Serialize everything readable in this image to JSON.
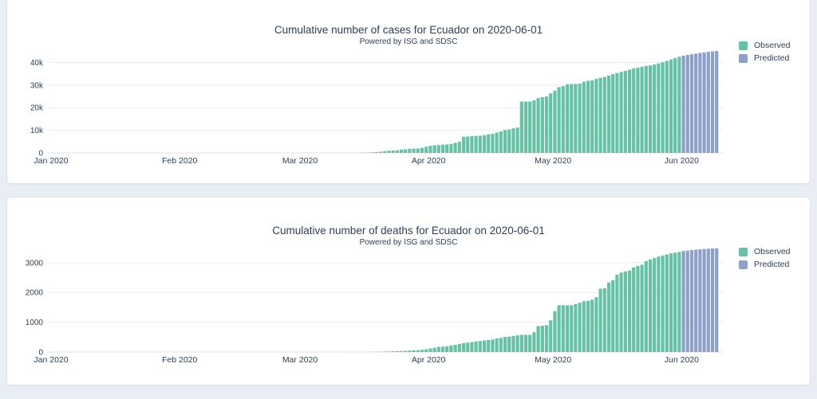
{
  "page": {
    "background_color": "#e9edf4",
    "card_background": "#ffffff",
    "text_color": "#2a3f5f",
    "observed_color": "#66c2a5",
    "predicted_color": "#8da0cb"
  },
  "chart_data": [
    {
      "type": "bar",
      "title": "Cumulative number of cases for Ecuador on 2020-06-01",
      "subtitle": "Powered by ISG and SDSC",
      "xlabel": "",
      "ylabel": "",
      "grid": true,
      "legend_position": "right",
      "x_start": "2020-01-01",
      "x_end": "2020-06-10",
      "ylim": [
        0,
        47000
      ],
      "x_ticks": [
        {
          "date": "2020-01-01",
          "label": "Jan 2020"
        },
        {
          "date": "2020-02-01",
          "label": "Feb 2020"
        },
        {
          "date": "2020-03-01",
          "label": "Mar 2020"
        },
        {
          "date": "2020-04-01",
          "label": "Apr 2020"
        },
        {
          "date": "2020-05-01",
          "label": "May 2020"
        },
        {
          "date": "2020-06-01",
          "label": "Jun 2020"
        }
      ],
      "y_ticks": [
        {
          "value": 0,
          "label": "0"
        },
        {
          "value": 10000,
          "label": "10k"
        },
        {
          "value": 20000,
          "label": "20k"
        },
        {
          "value": 30000,
          "label": "30k"
        },
        {
          "value": 40000,
          "label": "40k"
        }
      ],
      "series": [
        {
          "name": "Observed",
          "color": "#66c2a5",
          "start": "2020-02-29",
          "values": [
            1,
            6,
            7,
            7,
            10,
            13,
            13,
            13,
            14,
            15,
            15,
            17,
            17,
            23,
            28,
            37,
            58,
            111,
            155,
            260,
            367,
            506,
            789,
            981,
            1082,
            1211,
            1403,
            1595,
            1823,
            1924,
            1962,
            2240,
            2748,
            3163,
            3368,
            3465,
            3646,
            3747,
            3995,
            4450,
            4965,
            7161,
            7257,
            7466,
            7529,
            7603,
            7858,
            8225,
            8450,
            9022,
            9468,
            10128,
            10398,
            10850,
            11183,
            22719,
            22719,
            22719,
            23240,
            24258,
            24675,
            24934,
            26336,
            27464,
            29071,
            29509,
            30298,
            30486,
            30502,
            30619,
            31467,
            31881,
            32078,
            32723,
            33182,
            33582,
            34151,
            34854,
            35306,
            35828,
            36258,
            36756,
            37355,
            37646,
            38103,
            38471,
            38700,
            39100,
            39600,
            40100,
            40700,
            41300,
            41900,
            42500
          ]
        },
        {
          "name": "Predicted",
          "color": "#8da0cb",
          "start": "2020-06-02",
          "values": [
            43000,
            43300,
            43600,
            43900,
            44200,
            44450,
            44700,
            44900,
            45100
          ]
        }
      ]
    },
    {
      "type": "bar",
      "title": "Cumulative number of deaths for Ecuador on 2020-06-01",
      "subtitle": "Powered by ISG and SDSC",
      "xlabel": "",
      "ylabel": "",
      "grid": true,
      "legend_position": "right",
      "x_start": "2020-01-01",
      "x_end": "2020-06-10",
      "ylim": [
        0,
        3700
      ],
      "x_ticks": [
        {
          "date": "2020-01-01",
          "label": "Jan 2020"
        },
        {
          "date": "2020-02-01",
          "label": "Feb 2020"
        },
        {
          "date": "2020-03-01",
          "label": "Mar 2020"
        },
        {
          "date": "2020-04-01",
          "label": "Apr 2020"
        },
        {
          "date": "2020-05-01",
          "label": "May 2020"
        },
        {
          "date": "2020-06-01",
          "label": "Jun 2020"
        }
      ],
      "y_ticks": [
        {
          "value": 0,
          "label": "0"
        },
        {
          "value": 1000,
          "label": "1000"
        },
        {
          "value": 2000,
          "label": "2000"
        },
        {
          "value": 3000,
          "label": "3000"
        }
      ],
      "series": [
        {
          "name": "Observed",
          "color": "#66c2a5",
          "start": "2020-03-13",
          "values": [
            1,
            2,
            2,
            2,
            2,
            2,
            3,
            5,
            7,
            14,
            18,
            27,
            29,
            34,
            36,
            48,
            58,
            60,
            75,
            93,
            120,
            145,
            172,
            180,
            191,
            220,
            242,
            272,
            297,
            315,
            333,
            355,
            369,
            388,
            403,
            421,
            456,
            474,
            507,
            520,
            537,
            560,
            576,
            576,
            576,
            663,
            871,
            883,
            900,
            1063,
            1371,
            1569,
            1569,
            1569,
            1569,
            1610,
            1654,
            1704,
            1717,
            1757,
            1838,
            2127,
            2145,
            2334,
            2410,
            2594,
            2666,
            2706,
            2736,
            2839,
            2888,
            2930,
            3056,
            3108,
            3158,
            3203,
            3240,
            3275,
            3310,
            3334,
            3358
          ]
        },
        {
          "name": "Predicted",
          "color": "#8da0cb",
          "start": "2020-06-02",
          "values": [
            3390,
            3405,
            3420,
            3435,
            3448,
            3458,
            3468,
            3476,
            3482
          ]
        }
      ]
    }
  ]
}
